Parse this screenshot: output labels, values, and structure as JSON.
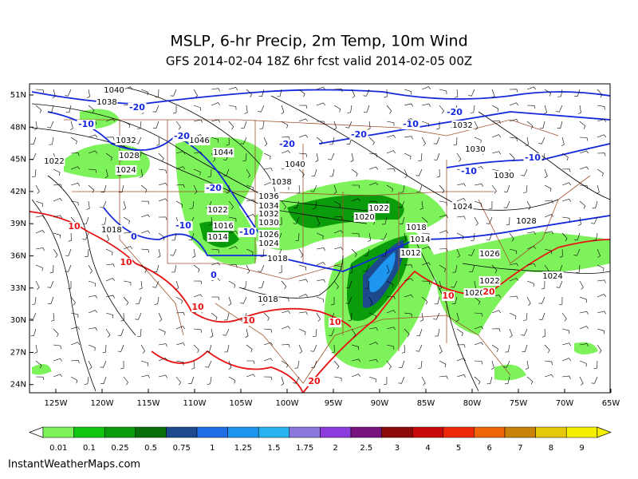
{
  "header": {
    "title": "MSLP, 6-hr Precip, 2m Temp, 10m Wind",
    "subtitle": "GFS 2014-02-04 18Z 6hr fcst valid 2014-02-05 00Z"
  },
  "map": {
    "lat_labels": [
      "51N",
      "48N",
      "45N",
      "42N",
      "39N",
      "36N",
      "33N",
      "30N",
      "27N",
      "24N"
    ],
    "lon_labels": [
      "125W",
      "120W",
      "115W",
      "110W",
      "105W",
      "100W",
      "95W",
      "90W",
      "85W",
      "80W",
      "75W",
      "70W",
      "65W"
    ],
    "isobar_labels": [
      "1040",
      "1038",
      "1032",
      "1028",
      "1024",
      "1046",
      "1044",
      "1040",
      "1038",
      "1036",
      "1034",
      "1032",
      "1030",
      "1026",
      "1024",
      "1022",
      "1016",
      "1014",
      "1018",
      "1022",
      "1020",
      "1024",
      "1018",
      "1014",
      "1012",
      "1026",
      "1022",
      "1020",
      "1024",
      "1028",
      "1030",
      "1032",
      "1030",
      "1018",
      "1018",
      "1022"
    ],
    "freezing_labels": [
      "-20",
      "-10",
      "-20",
      "-20",
      "-10",
      "0",
      "-10",
      "-20",
      "-20",
      "-10",
      "-10",
      "0",
      "-20",
      "-10"
    ],
    "warm_labels": [
      "10",
      "10",
      "10",
      "10",
      "10",
      "20",
      "10",
      "20"
    ]
  },
  "legend": {
    "labels": [
      "0.01",
      "0.1",
      "0.25",
      "0.5",
      "0.75",
      "1",
      "1.25",
      "1.5",
      "1.75",
      "2",
      "2.5",
      "3",
      "4",
      "5",
      "6",
      "7",
      "8",
      "9"
    ],
    "colors": [
      "#7df25a",
      "#10c810",
      "#0a9c0a",
      "#0a6e0a",
      "#1c4a8c",
      "#1e6ee6",
      "#1e96f0",
      "#28b4f0",
      "#8c78dc",
      "#8c3cdc",
      "#78147d",
      "#8c0a0a",
      "#c80a0a",
      "#f0280a",
      "#f0640a",
      "#c8820a",
      "#e6c80a",
      "#f5f000"
    ]
  },
  "footer": {
    "credit": "InstantWeatherMaps.com"
  }
}
